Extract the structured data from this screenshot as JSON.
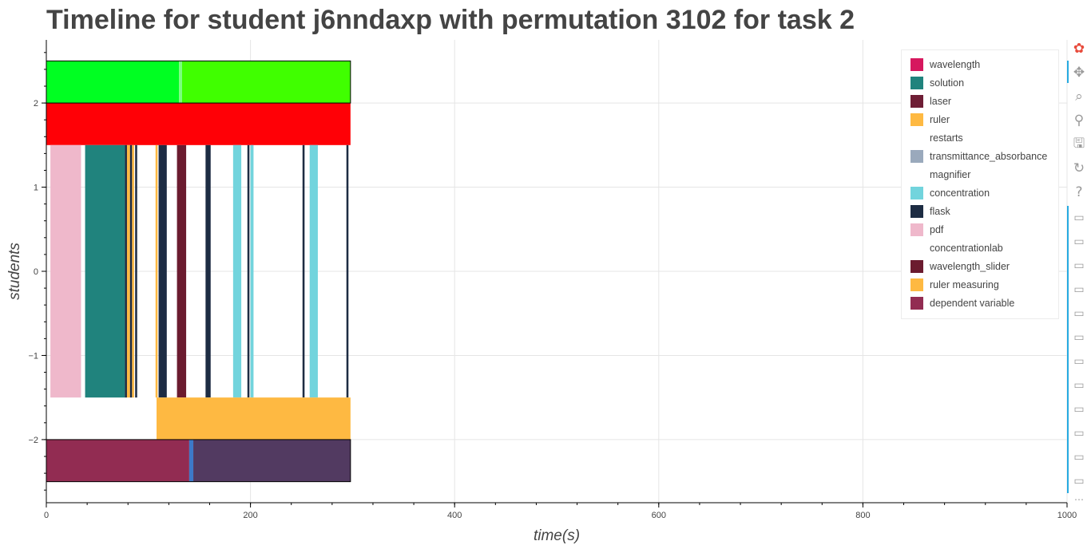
{
  "title": "Timeline for student j6nndaxp with permutation 3102 for task 2",
  "chart_data": {
    "type": "timeline",
    "title": "Timeline for student j6nndaxp with permutation 3102 for task 2",
    "xlabel": "time(s)",
    "ylabel": "students",
    "xlim": [
      0,
      1000
    ],
    "ylim": [
      -2.75,
      2.75
    ],
    "x_ticks": [
      0,
      200,
      400,
      600,
      800,
      1000
    ],
    "x_tick_labels": [
      "0",
      "200",
      "400",
      "600",
      "800",
      "1000"
    ],
    "y_ticks": [
      -2,
      -1,
      0,
      1,
      2
    ],
    "y_tick_labels": [
      "−2",
      "−1",
      "0",
      "1",
      "2"
    ],
    "grid": true,
    "legend_position": "top-right",
    "legend": [
      {
        "label": "wavelength",
        "color": "#d6185e"
      },
      {
        "label": "solution",
        "color": "#20837d"
      },
      {
        "label": "laser",
        "color": "#6e1e35"
      },
      {
        "label": "ruler",
        "color": "#feb942"
      },
      {
        "label": "restarts",
        "color": "#ffffff"
      },
      {
        "label": "transmittance_absorbance",
        "color": "#9aa9bc"
      },
      {
        "label": "magnifier",
        "color": "#ffffff"
      },
      {
        "label": "concentration",
        "color": "#72d4dd"
      },
      {
        "label": "flask",
        "color": "#1d2c43"
      },
      {
        "label": "pdf",
        "color": "#efb8cb"
      },
      {
        "label": "concentrationlab",
        "color": "#ffffff"
      },
      {
        "label": "wavelength_slider",
        "color": "#6b1b2f"
      },
      {
        "label": "ruler measuring",
        "color": "#feb942"
      },
      {
        "label": "dependent variable",
        "color": "#922c52"
      }
    ],
    "rows": [
      {
        "y0": 2.0,
        "y1": 2.5,
        "segments": [
          {
            "start": 0,
            "end": 130,
            "color": "#00ff22"
          },
          {
            "start": 130,
            "end": 133,
            "color": "#7bff7e"
          },
          {
            "start": 133,
            "end": 298,
            "color": "#40ff00"
          }
        ]
      },
      {
        "y0": 1.5,
        "y1": 2.0,
        "segments": [
          {
            "start": 0,
            "end": 298,
            "color": "#ff0006"
          }
        ]
      },
      {
        "y0": -1.5,
        "y1": 1.5,
        "segments": [
          {
            "start": 4,
            "end": 34,
            "color": "#efb8cb"
          },
          {
            "start": 38,
            "end": 77,
            "color": "#20837d"
          },
          {
            "start": 77,
            "end": 79,
            "color": "#1d2c43"
          },
          {
            "start": 79,
            "end": 82,
            "color": "#feb942"
          },
          {
            "start": 82,
            "end": 84,
            "color": "#1d2c43"
          },
          {
            "start": 84,
            "end": 86,
            "color": "#feb942"
          },
          {
            "start": 87,
            "end": 89,
            "color": "#1d2c43"
          },
          {
            "start": 107,
            "end": 109,
            "color": "#feb942"
          },
          {
            "start": 110,
            "end": 118,
            "color": "#1d2c43"
          },
          {
            "start": 128,
            "end": 137,
            "color": "#6b1b2f"
          },
          {
            "start": 156,
            "end": 161,
            "color": "#1d2c43"
          },
          {
            "start": 183,
            "end": 191,
            "color": "#72d4dd"
          },
          {
            "start": 197,
            "end": 199,
            "color": "#1d2c43"
          },
          {
            "start": 200,
            "end": 203,
            "color": "#72d4dd"
          },
          {
            "start": 251,
            "end": 253,
            "color": "#1d2c43"
          },
          {
            "start": 258,
            "end": 266,
            "color": "#72d4dd"
          },
          {
            "start": 294,
            "end": 296,
            "color": "#1d2c43"
          }
        ]
      },
      {
        "y0": -2.0,
        "y1": -1.5,
        "segments": [
          {
            "start": 108,
            "end": 298,
            "color": "#feb942"
          }
        ]
      },
      {
        "y0": -2.5,
        "y1": -2.0,
        "segments": [
          {
            "start": 0,
            "end": 140,
            "color": "#922c52"
          },
          {
            "start": 140,
            "end": 144,
            "color": "#3d79c9"
          },
          {
            "start": 144,
            "end": 298,
            "color": "#523a61"
          }
        ]
      }
    ],
    "row_outlines": [
      {
        "y0": 2.0,
        "y1": 2.5,
        "x0": 0,
        "x1": 298
      },
      {
        "y0": -2.5,
        "y1": -2.0,
        "x0": 0,
        "x1": 298
      }
    ]
  },
  "toolbar": {
    "tools": [
      {
        "name": "bokeh-logo-icon",
        "glyph": "✿"
      },
      {
        "name": "pan-icon",
        "glyph": "✥"
      },
      {
        "name": "box-zoom-icon",
        "glyph": "⌕"
      },
      {
        "name": "wheel-zoom-icon",
        "glyph": "⚲"
      },
      {
        "name": "save-icon",
        "glyph": "🖫"
      },
      {
        "name": "reset-icon",
        "glyph": "↻"
      },
      {
        "name": "help-icon",
        "glyph": "?"
      }
    ],
    "hover_tool_count": 12,
    "hover_glyph": "▭",
    "more_glyph": "⋯"
  }
}
